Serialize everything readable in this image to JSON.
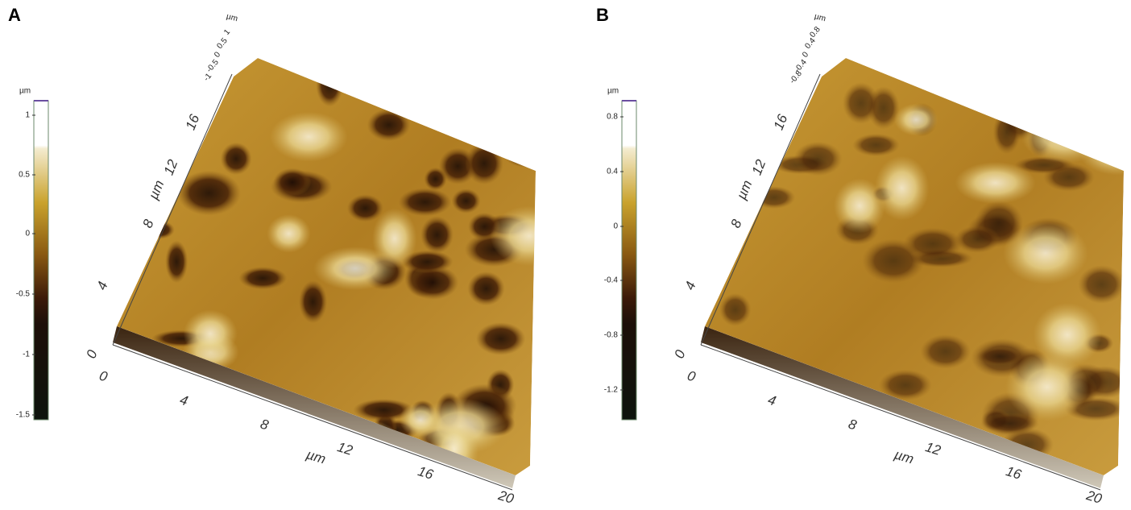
{
  "panels": [
    {
      "label": "A",
      "colorbar": {
        "unit": "µm",
        "ticks": [
          "1",
          "0.5",
          "0",
          "-0.5",
          "-1",
          "-1.5"
        ]
      },
      "z_axis": {
        "unit": "µm",
        "ticks": [
          "1",
          "0.5",
          "0",
          "-0.5",
          "-1"
        ]
      },
      "y_axis": {
        "label": "µm",
        "ticks": [
          "0",
          "4",
          "8",
          "12",
          "16"
        ]
      },
      "x_axis": {
        "label": "µm",
        "ticks": [
          "0",
          "4",
          "8",
          "12",
          "16",
          "20"
        ]
      }
    },
    {
      "label": "B",
      "colorbar": {
        "unit": "µm",
        "ticks": [
          "0.8",
          "0.4",
          "0",
          "-0.4",
          "-0.8",
          "-1.2"
        ]
      },
      "z_axis": {
        "unit": "µm",
        "ticks": [
          "0.8",
          "0.4",
          "0",
          "-0.4",
          "-0.8"
        ]
      },
      "y_axis": {
        "label": "µm",
        "ticks": [
          "0",
          "4",
          "8",
          "12",
          "16"
        ]
      },
      "x_axis": {
        "label": "µm",
        "ticks": [
          "0",
          "4",
          "8",
          "12",
          "16",
          "20"
        ]
      }
    }
  ]
}
